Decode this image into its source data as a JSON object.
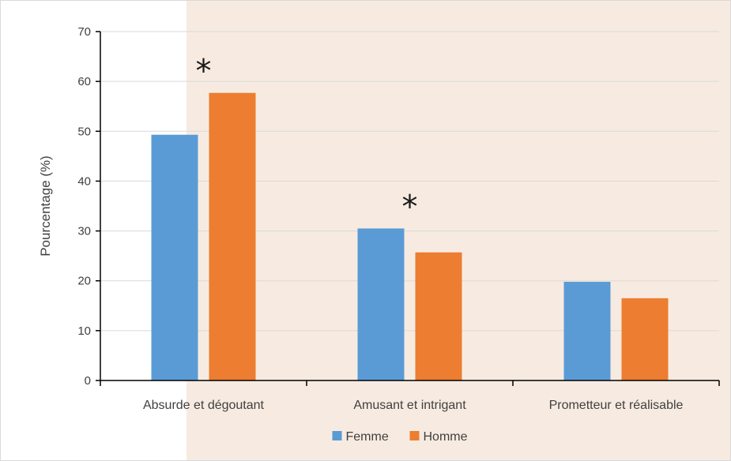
{
  "chart_data": {
    "type": "bar",
    "title": "",
    "xlabel": "",
    "ylabel": "Pourcentage (%)",
    "ylim": [
      0,
      70
    ],
    "yticks": [
      0,
      10,
      20,
      30,
      40,
      50,
      60,
      70
    ],
    "grid": true,
    "legend_position": "bottom",
    "categories": [
      "Absurde et dégoutant",
      "Amusant et intrigant",
      "Prometteur et réalisable"
    ],
    "series": [
      {
        "name": "Femme",
        "color": "#5B9BD5",
        "values": [
          49.3,
          30.5,
          19.8
        ]
      },
      {
        "name": "Homme",
        "color": "#ED7D31",
        "values": [
          57.7,
          25.7,
          16.5
        ]
      }
    ],
    "annotations": [
      {
        "text": "*",
        "category_index": 0
      },
      {
        "text": "*",
        "category_index": 1
      }
    ],
    "colors": {
      "gridline": "#d9d9d9",
      "axis": "#000000",
      "panel": "#f7ebe1"
    }
  }
}
